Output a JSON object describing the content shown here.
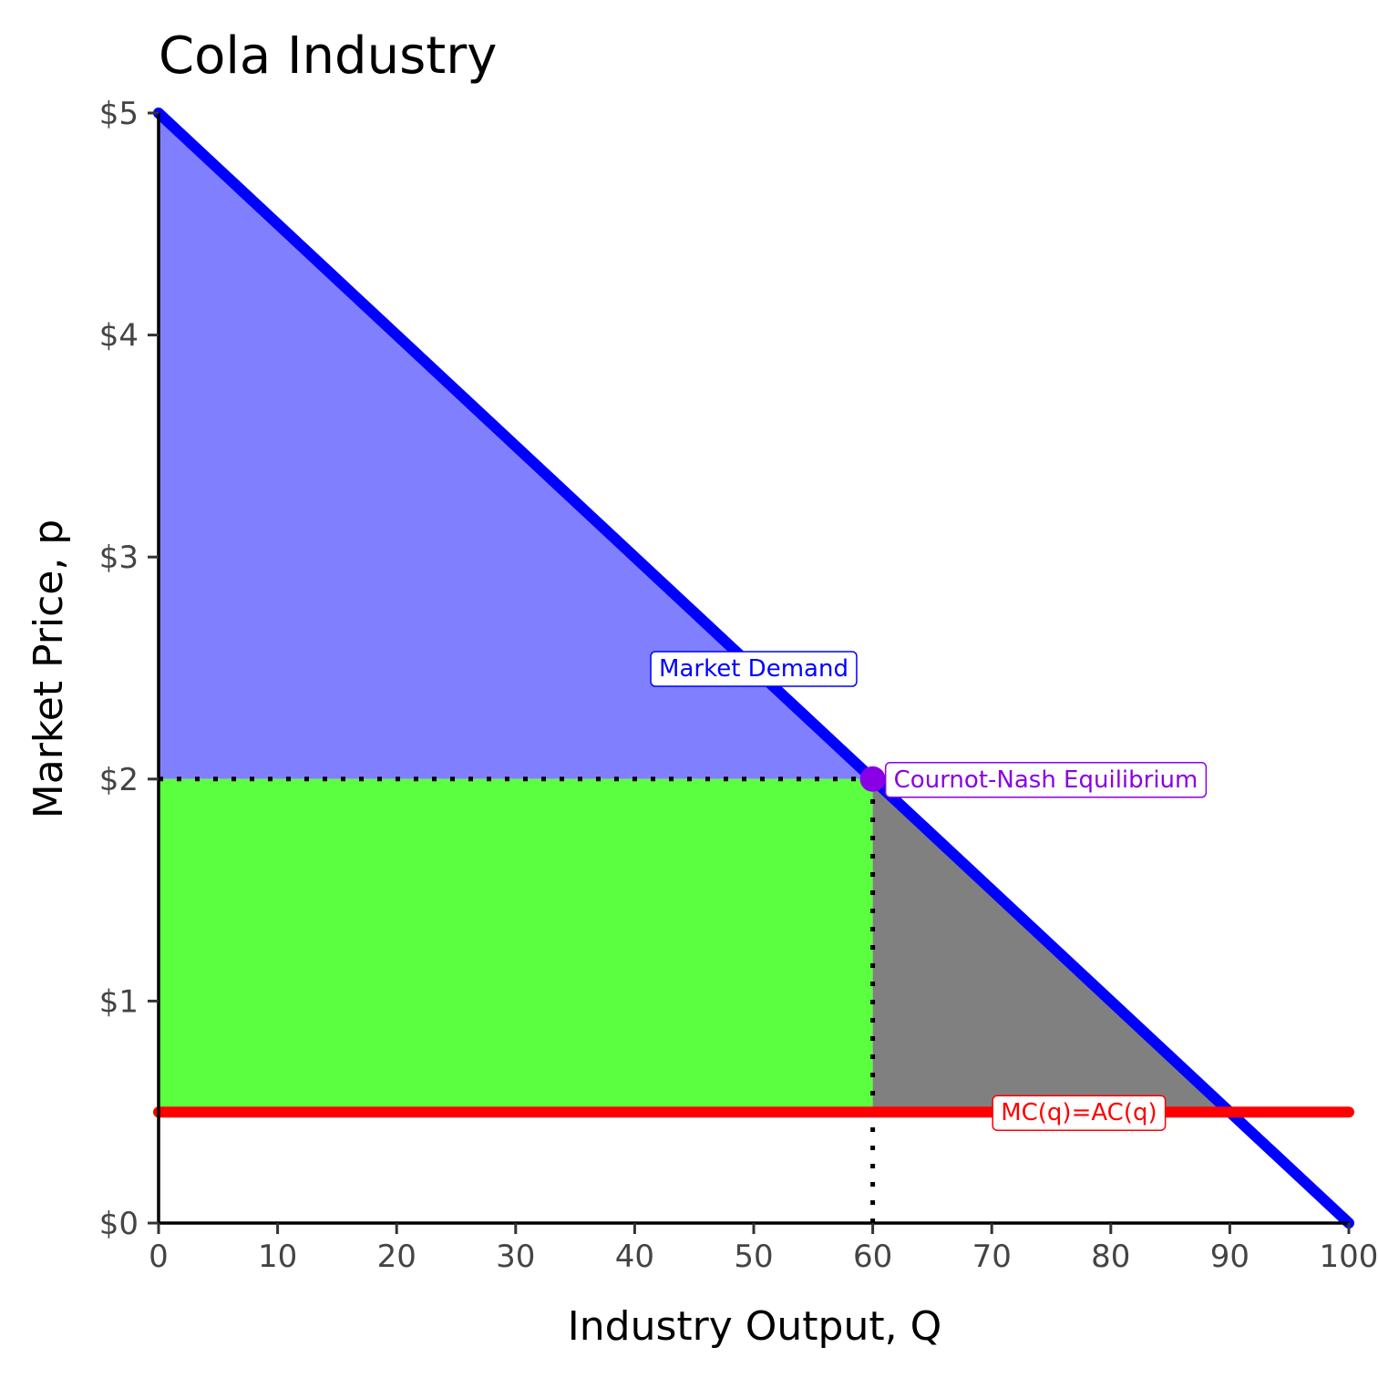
{
  "chart_data": {
    "type": "line",
    "title": "Cola Industry",
    "xlabel": "Industry Output, Q",
    "ylabel": "Market Price, p",
    "xlim": [
      0,
      100
    ],
    "ylim": [
      0,
      5
    ],
    "x_ticks": [
      0,
      10,
      20,
      30,
      40,
      50,
      60,
      70,
      80,
      90,
      100
    ],
    "x_tick_labels": [
      "0",
      "10",
      "20",
      "30",
      "40",
      "50",
      "60",
      "70",
      "80",
      "90",
      "100"
    ],
    "y_ticks": [
      0,
      1,
      2,
      3,
      4,
      5
    ],
    "y_tick_labels": [
      "$0",
      "$1",
      "$2",
      "$3",
      "$4",
      "$5"
    ],
    "grid": false,
    "legend": "none",
    "series": [
      {
        "name": "Market Demand",
        "color": "#0000ff",
        "x": [
          0,
          100
        ],
        "y": [
          5,
          0
        ]
      },
      {
        "name": "MC(q)=AC(q)",
        "color": "#ff0000",
        "x": [
          0,
          100
        ],
        "y": [
          0.5,
          0.5
        ]
      }
    ],
    "areas": [
      {
        "region": "consumer-surplus",
        "color": "#8080ff",
        "polygon": [
          [
            0,
            5
          ],
          [
            60,
            2
          ],
          [
            0,
            2
          ]
        ]
      },
      {
        "region": "producer-profit",
        "color": "#5cff40",
        "polygon": [
          [
            0,
            2
          ],
          [
            60,
            2
          ],
          [
            60,
            0.5
          ],
          [
            0,
            0.5
          ]
        ]
      },
      {
        "region": "deadweight-loss",
        "color": "#808080",
        "polygon": [
          [
            60,
            2
          ],
          [
            90,
            0.5
          ],
          [
            60,
            0.5
          ]
        ]
      }
    ],
    "equilibrium": {
      "label": "Cournot-Nash Equilibrium",
      "x": 60,
      "y": 2,
      "color": "#8a00e6"
    },
    "guides": [
      {
        "from": [
          0,
          2
        ],
        "to": [
          60,
          2
        ]
      },
      {
        "from": [
          60,
          0
        ],
        "to": [
          60,
          2
        ]
      }
    ],
    "annotations": [
      {
        "text": "Market Demand",
        "x": 50,
        "y": 2.5,
        "color": "#0000ff"
      },
      {
        "text": "Cournot-Nash Equilibrium",
        "x": 61,
        "y": 2,
        "color": "#8a00e6"
      },
      {
        "text": "MC(q)=AC(q)",
        "x": 70,
        "y": 0.5,
        "color": "#ff0000"
      }
    ]
  }
}
